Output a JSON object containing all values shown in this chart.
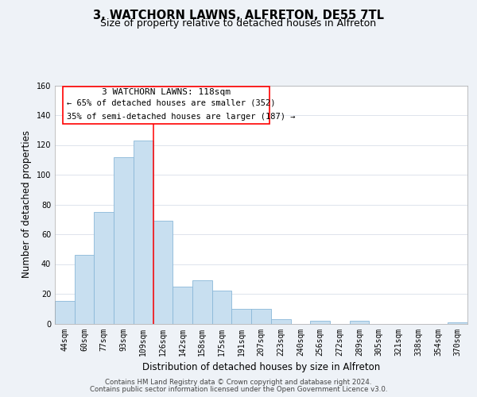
{
  "title": "3, WATCHORN LAWNS, ALFRETON, DE55 7TL",
  "subtitle": "Size of property relative to detached houses in Alfreton",
  "xlabel": "Distribution of detached houses by size in Alfreton",
  "ylabel": "Number of detached properties",
  "bar_labels": [
    "44sqm",
    "60sqm",
    "77sqm",
    "93sqm",
    "109sqm",
    "126sqm",
    "142sqm",
    "158sqm",
    "175sqm",
    "191sqm",
    "207sqm",
    "223sqm",
    "240sqm",
    "256sqm",
    "272sqm",
    "289sqm",
    "305sqm",
    "321sqm",
    "338sqm",
    "354sqm",
    "370sqm"
  ],
  "bar_values": [
    15,
    46,
    75,
    112,
    123,
    69,
    25,
    29,
    22,
    10,
    10,
    3,
    0,
    2,
    0,
    2,
    0,
    0,
    0,
    0,
    1
  ],
  "bar_color": "#c8dff0",
  "bar_edge_color": "#8ab8d8",
  "ylim": [
    0,
    160
  ],
  "yticks": [
    0,
    20,
    40,
    60,
    80,
    100,
    120,
    140,
    160
  ],
  "property_line_bin_index": 4.53,
  "annotation_title": "3 WATCHORN LAWNS: 118sqm",
  "annotation_line1": "← 65% of detached houses are smaller (352)",
  "annotation_line2": "35% of semi-detached houses are larger (187) →",
  "footer_line1": "Contains HM Land Registry data © Crown copyright and database right 2024.",
  "footer_line2": "Contains public sector information licensed under the Open Government Licence v3.0.",
  "background_color": "#eef2f7",
  "plot_background": "#ffffff",
  "grid_color": "#d0d8e4",
  "title_fontsize": 10.5,
  "subtitle_fontsize": 9,
  "axis_label_fontsize": 8.5,
  "tick_fontsize": 7,
  "footer_fontsize": 6.2,
  "annotation_fontsize_title": 8,
  "annotation_fontsize_body": 7.5
}
